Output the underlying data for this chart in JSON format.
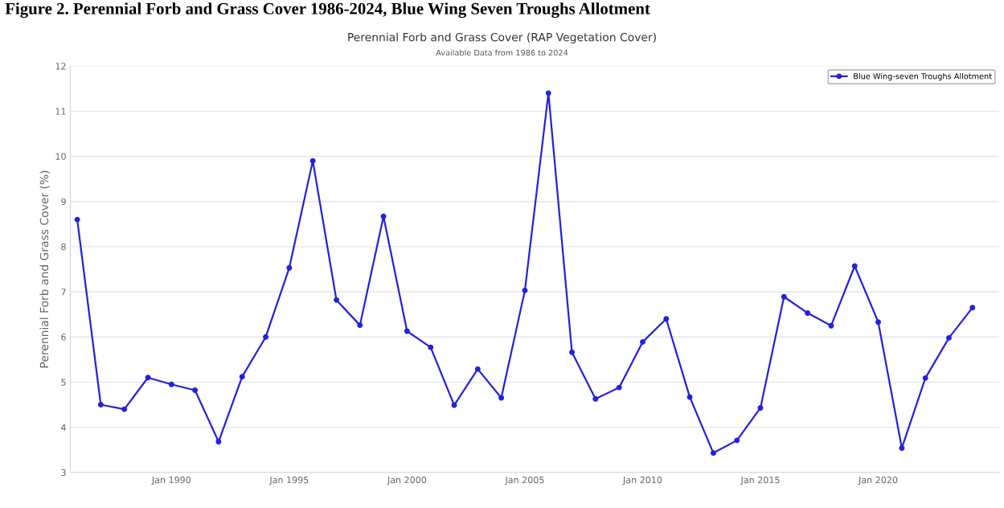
{
  "chart_data": {
    "type": "line",
    "title": "Perennial Forb and Grass Cover (RAP Vegetation Cover)",
    "subtitle": "Available Data from 1986 to 2024",
    "annotations": [
      "Figure 2. Perennial Forb and Grass Cover 1986-2024, Blue Wing Seven Troughs Allotment"
    ],
    "ylabel": "Perennial Forb and Grass Cover (%)",
    "x": [
      "1986",
      "1987",
      "1988",
      "1989",
      "1990",
      "1991",
      "1992",
      "1993",
      "1994",
      "1995",
      "1996",
      "1997",
      "1998",
      "1999",
      "2000",
      "2001",
      "2002",
      "2003",
      "2004",
      "2005",
      "2006",
      "2007",
      "2008",
      "2009",
      "2010",
      "2011",
      "2012",
      "2013",
      "2014",
      "2015",
      "2016",
      "2017",
      "2018",
      "2019",
      "2020",
      "2021",
      "2022",
      "2023",
      "2024"
    ],
    "series": [
      {
        "name": "Blue Wing-seven Troughs Allotment",
        "color": "#2222dd",
        "values": [
          8.6,
          4.5,
          4.4,
          5.1,
          4.95,
          4.82,
          3.68,
          5.12,
          6.0,
          7.53,
          9.9,
          6.82,
          6.26,
          8.67,
          6.13,
          5.77,
          4.49,
          5.29,
          4.65,
          7.03,
          11.4,
          5.66,
          4.63,
          4.88,
          5.89,
          6.4,
          4.67,
          3.43,
          3.71,
          4.43,
          6.89,
          6.53,
          6.25,
          7.57,
          6.33,
          3.54,
          5.09,
          5.98,
          6.65
        ]
      }
    ],
    "xlim": [
      "1985-09",
      "2025-02"
    ],
    "xticks": [
      {
        "value": "1990",
        "label": "Jan 1990"
      },
      {
        "value": "1995",
        "label": "Jan 1995"
      },
      {
        "value": "2000",
        "label": "Jan 2000"
      },
      {
        "value": "2005",
        "label": "Jan 2005"
      },
      {
        "value": "2010",
        "label": "Jan 2010"
      },
      {
        "value": "2015",
        "label": "Jan 2015"
      },
      {
        "value": "2020",
        "label": "Jan 2020"
      }
    ],
    "ylim": [
      3,
      12
    ],
    "yticks": [
      3,
      4,
      5,
      6,
      7,
      8,
      9,
      10,
      11,
      12
    ],
    "grid": "y",
    "legend": "top right",
    "marker": "circle",
    "line_style": "solid"
  }
}
